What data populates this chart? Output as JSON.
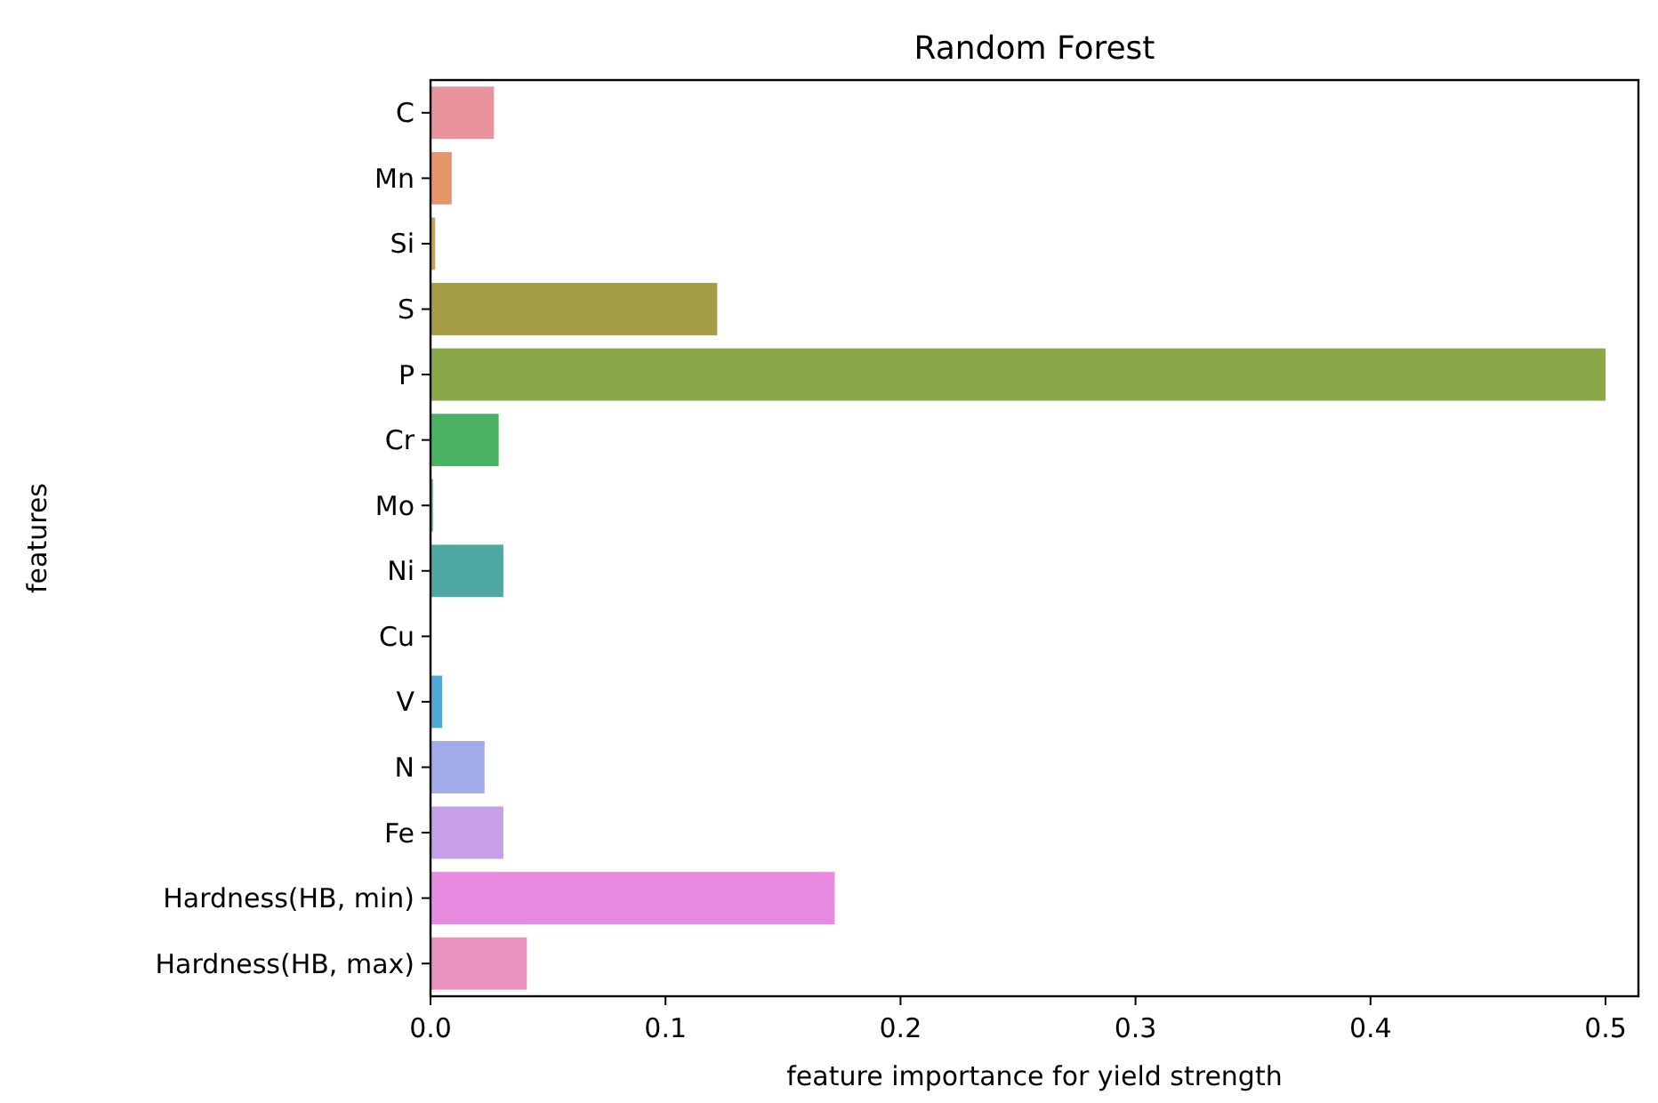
{
  "chart_data": {
    "type": "bar",
    "orientation": "horizontal",
    "title": "Random Forest",
    "xlabel": "feature importance for yield strength",
    "ylabel": "features",
    "categories": [
      "C",
      "Mn",
      "Si",
      "S",
      "P",
      "Cr",
      "Mo",
      "Ni",
      "Cu",
      "V",
      "N",
      "Fe",
      "Hardness(HB, min)",
      "Hardness(HB, max)"
    ],
    "values": [
      0.027,
      0.009,
      0.002,
      0.122,
      0.5,
      0.029,
      0.001,
      0.031,
      0,
      0.005,
      0.023,
      0.031,
      0.172,
      0.041
    ],
    "colors": [
      "#e8939e",
      "#e4956b",
      "#c9a24f",
      "#a59e46",
      "#88a84a",
      "#4bb263",
      "#4daf8f",
      "#4fa9a3",
      "#52a9b8",
      "#4ea8d8",
      "#a2abea",
      "#c69fe6",
      "#e68be0",
      "#e793bd"
    ],
    "xlim": [
      0,
      0.514
    ],
    "xticks": [
      {
        "value": 0,
        "label": "0.0"
      },
      0.1,
      0.2,
      0.3,
      0.4,
      0.5
    ]
  }
}
